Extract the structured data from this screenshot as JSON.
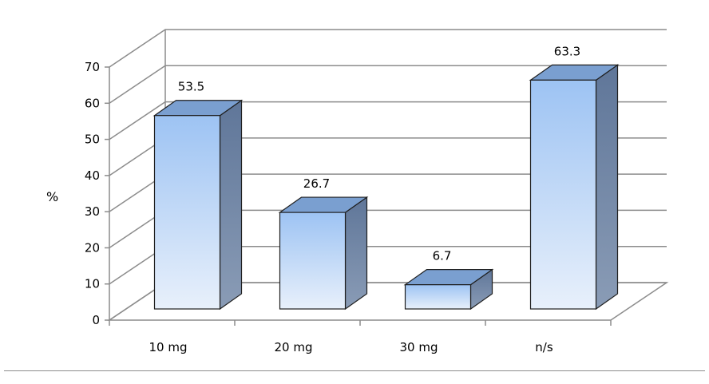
{
  "chart_data": {
    "type": "bar",
    "style": "3d-column",
    "categories": [
      "10 mg",
      "20 mg",
      "30 mg",
      "n/s"
    ],
    "values": [
      53.5,
      26.7,
      6.7,
      63.3
    ],
    "value_labels": [
      "53.5",
      "26.7",
      "6.7",
      "63.3"
    ],
    "title": "",
    "xlabel": "",
    "ylabel": "%",
    "ylim": [
      0,
      70
    ],
    "yticks": [
      "0",
      "10",
      "20",
      "30",
      "40",
      "50",
      "60",
      "70"
    ],
    "grid": true,
    "legend": "none"
  },
  "colors": {
    "bar_front_top": "#9dc3f3",
    "bar_front_bottom": "#e8f0fb",
    "bar_side": "#6b82a4",
    "bar_top": "#7a9fd0",
    "grid": "#8c8c8c"
  }
}
